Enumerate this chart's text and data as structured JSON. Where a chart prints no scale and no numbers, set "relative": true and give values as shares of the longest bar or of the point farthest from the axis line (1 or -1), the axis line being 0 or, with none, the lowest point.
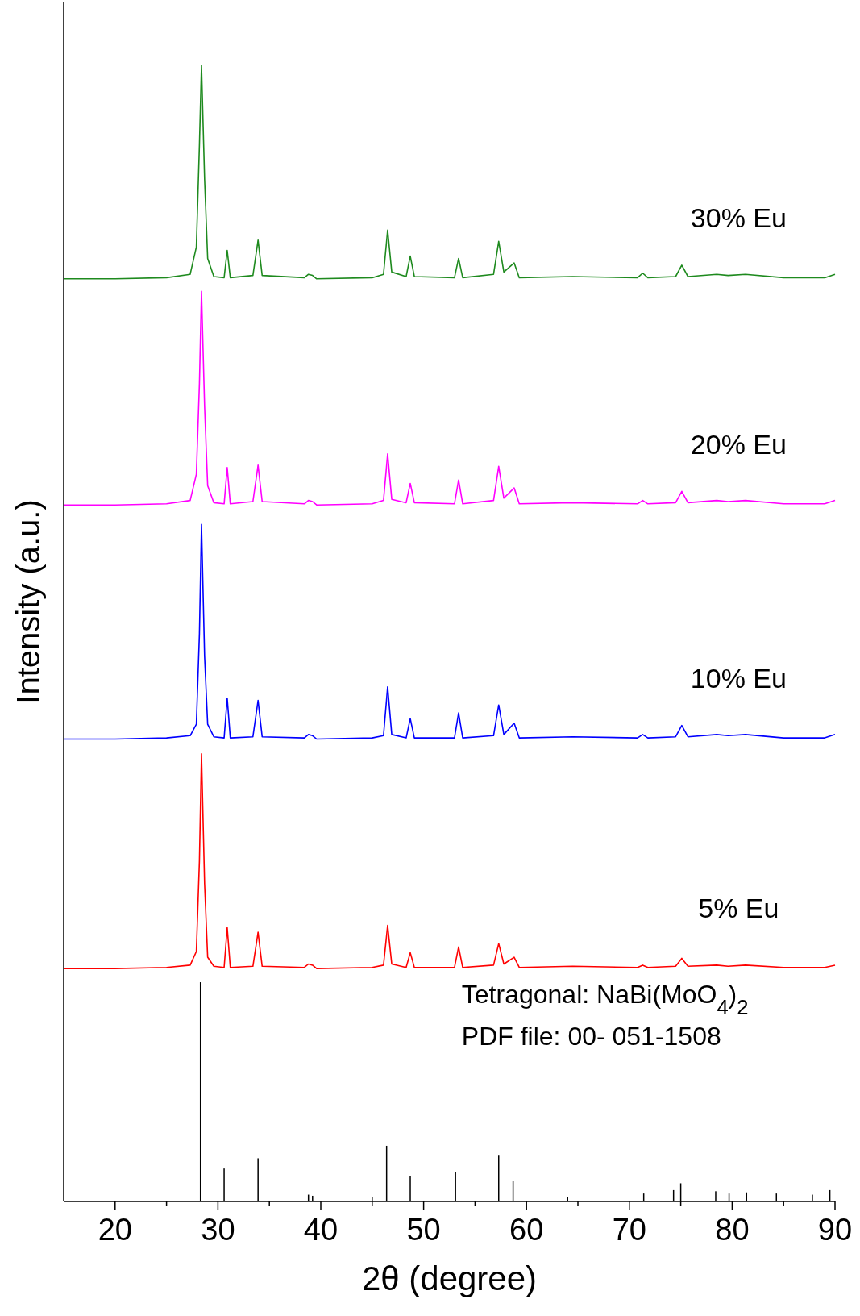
{
  "chart_data": {
    "type": "line",
    "xlabel": "2θ (degree)",
    "ylabel": "Intensity (a.u.)",
    "relative": true,
    "legend": false,
    "grid": false,
    "xlim": [
      15,
      90
    ],
    "xticks": [
      20,
      {
        "value": 25,
        "label": null
      },
      30,
      {
        "value": 35,
        "label": null
      },
      40,
      {
        "value": 45,
        "label": null
      },
      50,
      {
        "value": 55,
        "label": null
      },
      60,
      {
        "value": 65,
        "label": null
      },
      70,
      {
        "value": 75,
        "label": null
      },
      80,
      {
        "value": 85,
        "label": null
      },
      90
    ],
    "x": [
      15,
      20,
      25,
      27.3,
      27.9,
      28.2,
      28.4,
      28.7,
      29.0,
      29.6,
      30.6,
      30.9,
      31.2,
      33.4,
      33.9,
      34.3,
      38.4,
      38.8,
      39.2,
      39.6,
      45,
      46.1,
      46.5,
      46.9,
      48.3,
      48.7,
      49.1,
      53.0,
      53.4,
      53.8,
      56.8,
      57.3,
      57.8,
      58.8,
      59.3,
      64.5,
      70.8,
      71.3,
      71.8,
      74.5,
      75.1,
      75.7,
      78.5,
      79.6,
      81.3,
      85,
      89,
      90
    ],
    "series": [
      {
        "name": "30% Eu",
        "color": "#1e8a1e",
        "values": [
          0.812,
          0.812,
          0.813,
          0.816,
          0.84,
          0.93,
          1.0,
          0.9,
          0.83,
          0.814,
          0.813,
          0.837,
          0.813,
          0.815,
          0.846,
          0.815,
          0.813,
          0.816,
          0.815,
          0.812,
          0.813,
          0.816,
          0.855,
          0.818,
          0.814,
          0.832,
          0.814,
          0.813,
          0.83,
          0.813,
          0.816,
          0.845,
          0.818,
          0.826,
          0.813,
          0.814,
          0.813,
          0.817,
          0.813,
          0.814,
          0.824,
          0.814,
          0.816,
          0.815,
          0.816,
          0.813,
          0.813,
          0.816
        ]
      },
      {
        "name": "20% Eu",
        "color": "#ff00ff",
        "values": [
          0.613,
          0.613,
          0.614,
          0.617,
          0.64,
          0.72,
          0.801,
          0.7,
          0.63,
          0.615,
          0.614,
          0.646,
          0.614,
          0.616,
          0.648,
          0.616,
          0.614,
          0.617,
          0.616,
          0.613,
          0.614,
          0.617,
          0.658,
          0.618,
          0.615,
          0.632,
          0.615,
          0.614,
          0.635,
          0.614,
          0.617,
          0.647,
          0.619,
          0.628,
          0.614,
          0.615,
          0.614,
          0.617,
          0.614,
          0.615,
          0.625,
          0.615,
          0.617,
          0.616,
          0.617,
          0.614,
          0.614,
          0.617
        ]
      },
      {
        "name": "10% Eu",
        "color": "#0000ff",
        "values": [
          0.407,
          0.407,
          0.408,
          0.41,
          0.42,
          0.5,
          0.596,
          0.48,
          0.42,
          0.409,
          0.408,
          0.443,
          0.408,
          0.409,
          0.441,
          0.409,
          0.408,
          0.411,
          0.41,
          0.407,
          0.408,
          0.41,
          0.453,
          0.411,
          0.408,
          0.425,
          0.408,
          0.408,
          0.43,
          0.408,
          0.41,
          0.437,
          0.411,
          0.421,
          0.408,
          0.409,
          0.408,
          0.411,
          0.408,
          0.409,
          0.419,
          0.409,
          0.411,
          0.41,
          0.411,
          0.408,
          0.408,
          0.411
        ]
      },
      {
        "name": "5% Eu",
        "color": "#ff0000",
        "values": [
          0.205,
          0.205,
          0.206,
          0.208,
          0.22,
          0.3,
          0.394,
          0.28,
          0.215,
          0.207,
          0.206,
          0.241,
          0.206,
          0.207,
          0.237,
          0.207,
          0.206,
          0.209,
          0.208,
          0.205,
          0.206,
          0.208,
          0.243,
          0.209,
          0.206,
          0.219,
          0.206,
          0.206,
          0.224,
          0.206,
          0.208,
          0.227,
          0.209,
          0.215,
          0.206,
          0.207,
          0.206,
          0.208,
          0.206,
          0.207,
          0.214,
          0.207,
          0.208,
          0.207,
          0.208,
          0.206,
          0.206,
          0.208
        ]
      },
      {
        "type": "bar",
        "color": "#000000",
        "x": [
          28.3,
          30.6,
          33.9,
          38.8,
          39.2,
          45.0,
          46.4,
          48.7,
          53.1,
          57.3,
          58.7,
          64.0,
          71.4,
          74.3,
          75.0,
          78.4,
          79.7,
          81.4,
          84.3,
          87.8,
          89.5
        ],
        "values": [
          0.193,
          0.029,
          0.038,
          0.006,
          0.005,
          0.004,
          0.049,
          0.022,
          0.026,
          0.041,
          0.018,
          0.004,
          0.007,
          0.01,
          0.016,
          0.009,
          0.007,
          0.008,
          0.007,
          0.006,
          0.01
        ]
      }
    ],
    "annotations": [
      "Tetragonal: NaBi(MoO$_{4}$)$_{2}$",
      "PDF file: 00- 051-1508"
    ]
  }
}
